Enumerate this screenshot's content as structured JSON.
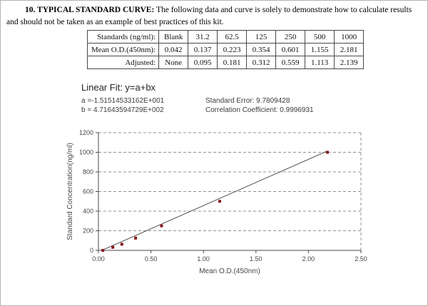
{
  "header": {
    "bold": "10. TYPICAL STANDARD CURVE:",
    "text": " The following data and curve is solely to demonstrate how to calculate results and should not be taken as an example of best practices of this kit."
  },
  "table": {
    "rows": [
      {
        "label": "Standards (ng/ml):",
        "values": [
          "Blank",
          "31.2",
          "62.5",
          "125",
          "250",
          "500",
          "1000"
        ]
      },
      {
        "label": "Mean O.D.(450nm):",
        "values": [
          "0.042",
          "0.137",
          "0.223",
          "0.354",
          "0.601",
          "1.155",
          "2.181"
        ]
      },
      {
        "label": "Adjusted:",
        "values": [
          "None",
          "0.095",
          "0.181",
          "0.312",
          "0.559",
          "1.113",
          "2.139"
        ]
      }
    ]
  },
  "fit": {
    "title": "Linear Fit: y=a+bx",
    "a_label": "a =-1.51514533162E+001",
    "b_label": "b = 4.71643594729E+002",
    "std_error": "Standard Error: 9.7809428",
    "corr": "Correlation Coefficient: 0.9996931"
  },
  "chart_data": {
    "type": "scatter",
    "title": "",
    "xlabel": "Mean O.D.(450nm)",
    "ylabel": "Standard Concentration(ng/ml)",
    "x": [
      0.042,
      0.137,
      0.223,
      0.354,
      0.601,
      1.155,
      2.181
    ],
    "y": [
      0,
      31.2,
      62.5,
      125,
      250,
      500,
      1000
    ],
    "fit_line": {
      "a": -15.1514533162,
      "b": 471.643594729
    },
    "xlim": [
      0,
      2.5
    ],
    "ylim": [
      0,
      1200
    ],
    "xticks": [
      0,
      0.5,
      1,
      1.5,
      2,
      2.5
    ],
    "yticks": [
      0,
      200,
      400,
      600,
      800,
      1000,
      1200
    ],
    "grid": "dashed-horizontal",
    "point_color": "#8b1a1a",
    "line_color": "#565656",
    "axis_color": "#4a4a4a",
    "grid_color": "#909090"
  }
}
